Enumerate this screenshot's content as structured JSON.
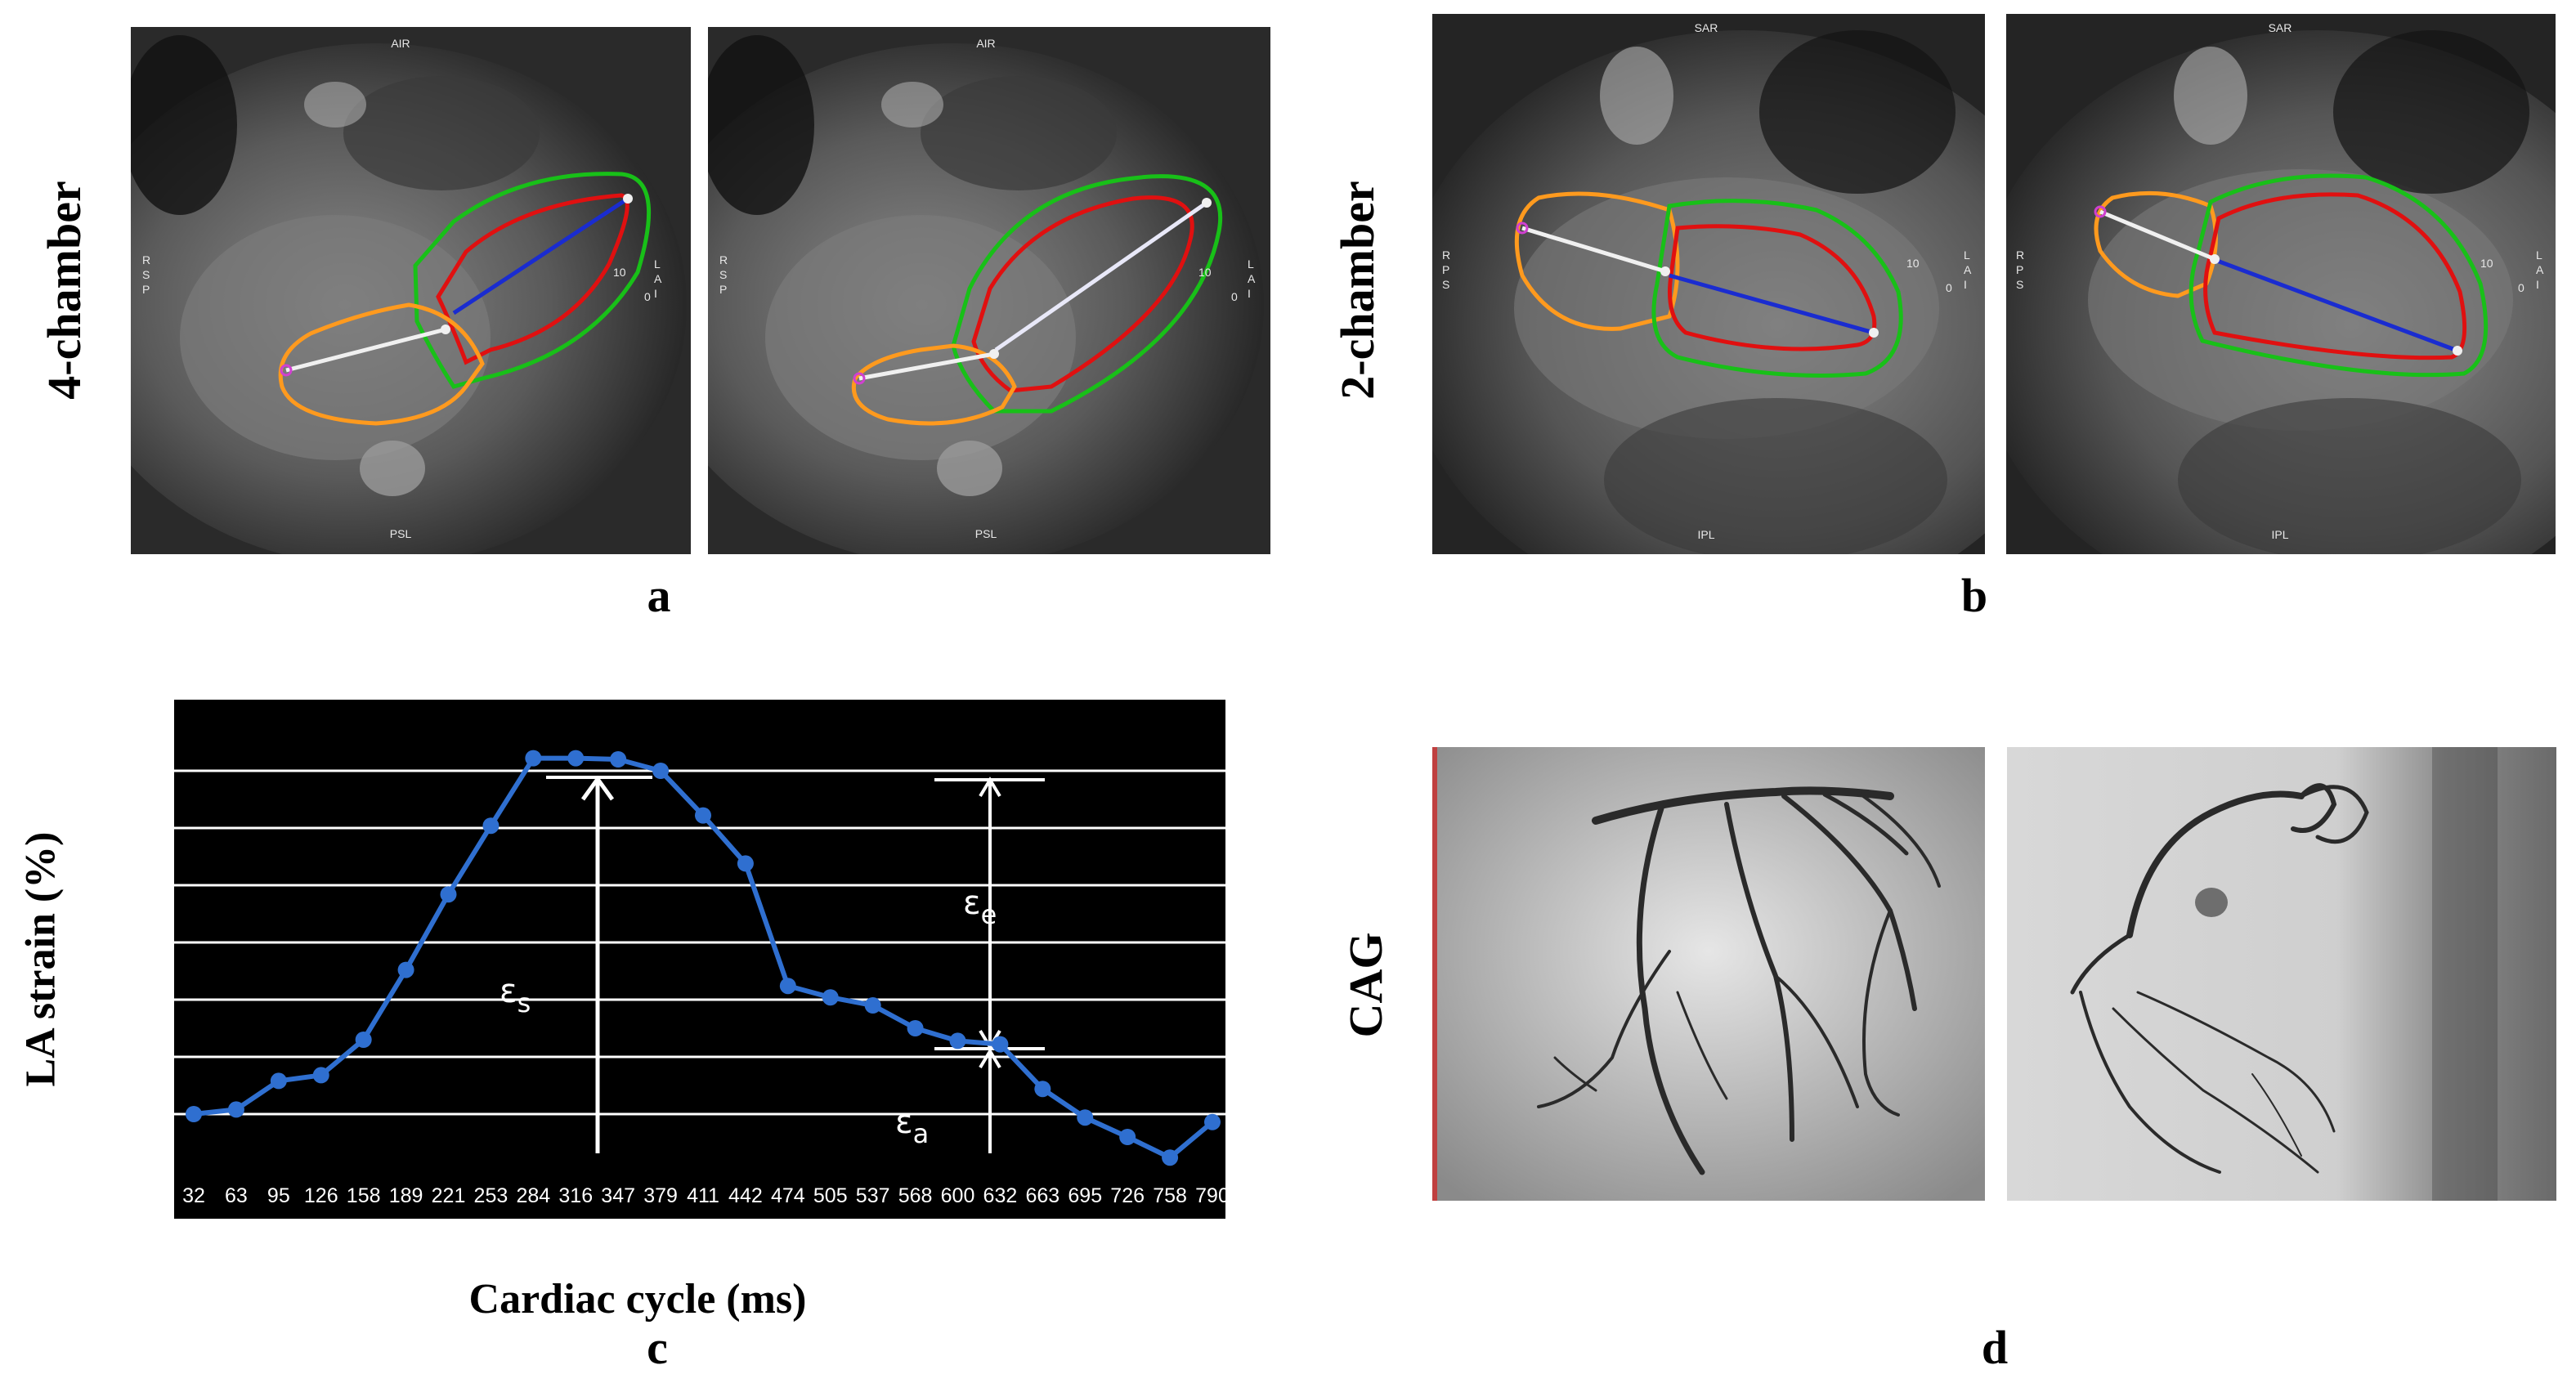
{
  "labels": {
    "four_chamber": "4-chamber",
    "two_chamber": "2-chamber",
    "cag": "CAG",
    "panel_a": "a",
    "panel_b": "b",
    "panel_c": "c",
    "panel_d": "d"
  },
  "mri_annotations": {
    "four_ch": {
      "top": "AIR",
      "bottom": "PSL",
      "left": [
        "R",
        "S",
        "P"
      ],
      "right_num": "10",
      "right_zero": "0",
      "right_letters": [
        "L",
        "A",
        "I"
      ]
    },
    "two_ch": {
      "top": "SAR",
      "bottom": "IPL",
      "left": [
        "R",
        "P",
        "S"
      ],
      "right_num": "10",
      "right_zero": "0",
      "right_letters": [
        "L",
        "A",
        "I"
      ]
    }
  },
  "colors": {
    "lv_endo": "#e01010",
    "lv_epi": "#18c018",
    "la_contour": "#ff9a1e",
    "lv_axis": "#1a2cd0",
    "la_axis": "#f0f0f0",
    "chart_line": "#2f6fd0",
    "chart_bg": "#000000"
  },
  "chart_data": {
    "type": "line",
    "xlabel": "Cardiac cycle (ms)",
    "ylabel": "LA strain (%)",
    "categories": [
      "32",
      "63",
      "95",
      "126",
      "158",
      "189",
      "221",
      "253",
      "284",
      "316",
      "347",
      "379",
      "411",
      "442",
      "474",
      "505",
      "537",
      "568",
      "600",
      "632",
      "663",
      "695",
      "726",
      "758",
      "790"
    ],
    "series": [
      {
        "values": [
          5.0,
          5.4,
          7.9,
          8.4,
          11.5,
          17.6,
          24.2,
          30.2,
          36.1,
          36.1,
          36.0,
          35.0,
          31.1,
          26.9,
          16.2,
          15.2,
          14.5,
          12.5,
          11.4,
          11.1,
          7.2,
          4.7,
          3.0,
          1.2,
          4.3
        ]
      }
    ],
    "grid": true,
    "ylim": [
      0,
      40
    ],
    "annotations": [
      {
        "text": "ε",
        "sub": "s"
      },
      {
        "text": "ε",
        "sub": "e"
      },
      {
        "text": "ε",
        "sub": "a"
      }
    ]
  }
}
